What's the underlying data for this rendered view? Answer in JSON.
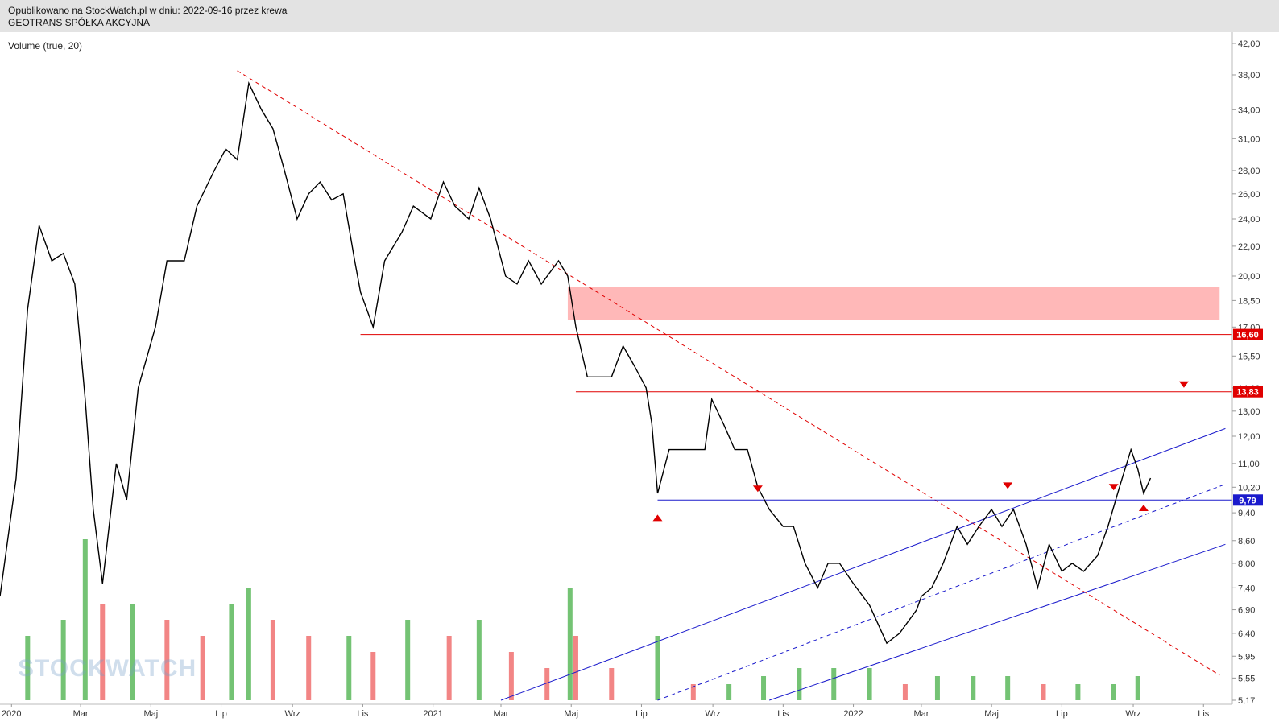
{
  "header": {
    "line1": "Opublikowano na StockWatch.pl w dniu: 2022-09-16 przez krewa",
    "line2": "GEOTRANS SPÓŁKA AKCYJNA"
  },
  "indicator_label": "Volume (true, 20)",
  "watermark": "STOCKWATCH",
  "colors": {
    "price": "#000000",
    "resistance": "#e00000",
    "support_blue": "#1a1acc",
    "zone": "#ffb8b8",
    "vol_up": "#5cb85c",
    "vol_down": "#f07070",
    "header_bg": "#e3e3e3"
  },
  "chart_data": {
    "type": "line",
    "title": "GEOTRANS SPÓŁKA AKCYJNA",
    "y_scale": "log",
    "ylim": [
      5.17,
      42.0
    ],
    "y_ticks": [
      "5,17",
      "5,55",
      "5,95",
      "6,40",
      "6,90",
      "7,40",
      "8,00",
      "8,60",
      "9,40",
      "10,20",
      "11,00",
      "12,00",
      "13,00",
      "14,00",
      "15,50",
      "17,00",
      "18,50",
      "20,00",
      "22,00",
      "24,00",
      "26,00",
      "28,00",
      "31,00",
      "34,00",
      "38,00",
      "42,00"
    ],
    "y_tick_values": [
      5.17,
      5.55,
      5.95,
      6.4,
      6.9,
      7.4,
      8.0,
      8.6,
      9.4,
      10.2,
      11.0,
      12.0,
      13.0,
      14.0,
      15.5,
      17.0,
      18.5,
      20.0,
      22.0,
      24.0,
      26.0,
      28.0,
      31.0,
      34.0,
      38.0,
      42.0
    ],
    "x_ticks": [
      "2020",
      "Mar",
      "Maj",
      "Lip",
      "Wrz",
      "Lis",
      "2021",
      "Mar",
      "Maj",
      "Lip",
      "Wrz",
      "Lis",
      "2022",
      "Mar",
      "Maj",
      "Lip",
      "Wrz",
      "Lis"
    ],
    "x_tick_dates": [
      "2020-01-01",
      "2020-03-01",
      "2020-05-01",
      "2020-07-01",
      "2020-09-01",
      "2020-11-01",
      "2021-01-01",
      "2021-03-01",
      "2021-05-01",
      "2021-07-01",
      "2021-09-01",
      "2021-11-01",
      "2022-01-01",
      "2022-03-01",
      "2022-05-01",
      "2022-07-01",
      "2022-09-01",
      "2022-11-01"
    ],
    "xlim": [
      "2019-12-22",
      "2022-11-26"
    ],
    "price_series": {
      "name": "GEOTRANS",
      "x": [
        "2019-12-22",
        "2020-01-05",
        "2020-01-15",
        "2020-01-25",
        "2020-02-05",
        "2020-02-15",
        "2020-02-25",
        "2020-03-05",
        "2020-03-12",
        "2020-03-20",
        "2020-04-01",
        "2020-04-10",
        "2020-04-20",
        "2020-05-05",
        "2020-05-15",
        "2020-05-30",
        "2020-06-10",
        "2020-06-25",
        "2020-07-05",
        "2020-07-15",
        "2020-07-25",
        "2020-08-05",
        "2020-08-15",
        "2020-08-25",
        "2020-09-05",
        "2020-09-15",
        "2020-09-25",
        "2020-10-05",
        "2020-10-15",
        "2020-10-25",
        "2020-10-30",
        "2020-11-10",
        "2020-11-20",
        "2020-12-05",
        "2020-12-15",
        "2020-12-30",
        "2021-01-10",
        "2021-01-20",
        "2021-02-01",
        "2021-02-10",
        "2021-02-20",
        "2021-03-05",
        "2021-03-15",
        "2021-03-25",
        "2021-04-05",
        "2021-04-20",
        "2021-04-28",
        "2021-05-05",
        "2021-05-15",
        "2021-05-25",
        "2021-06-05",
        "2021-06-15",
        "2021-06-25",
        "2021-07-05",
        "2021-07-10",
        "2021-07-15",
        "2021-07-25",
        "2021-08-10",
        "2021-08-25",
        "2021-08-31",
        "2021-09-10",
        "2021-09-20",
        "2021-10-01",
        "2021-10-10",
        "2021-10-20",
        "2021-11-01",
        "2021-11-10",
        "2021-11-20",
        "2021-12-01",
        "2021-12-10",
        "2021-12-20",
        "2022-01-01",
        "2022-01-15",
        "2022-01-30",
        "2022-02-10",
        "2022-02-25",
        "2022-03-01",
        "2022-03-10",
        "2022-03-20",
        "2022-04-01",
        "2022-04-10",
        "2022-04-20",
        "2022-05-01",
        "2022-05-10",
        "2022-05-20",
        "2022-05-31",
        "2022-06-10",
        "2022-06-20",
        "2022-07-01",
        "2022-07-10",
        "2022-07-20",
        "2022-08-01",
        "2022-08-10",
        "2022-08-20",
        "2022-08-30",
        "2022-09-05",
        "2022-09-10",
        "2022-09-16"
      ],
      "y": [
        7.2,
        10.5,
        18.0,
        23.5,
        21.0,
        21.5,
        19.5,
        13.5,
        9.5,
        7.5,
        11.0,
        9.8,
        14.0,
        17.0,
        21.0,
        21.0,
        25.0,
        28.0,
        30.0,
        29.0,
        37.0,
        34.0,
        32.0,
        28.0,
        24.0,
        26.0,
        27.0,
        25.5,
        26.0,
        21.0,
        19.0,
        17.0,
        21.0,
        23.0,
        25.0,
        24.0,
        27.0,
        25.0,
        24.0,
        26.5,
        24.0,
        20.0,
        19.5,
        21.0,
        19.5,
        21.0,
        20.0,
        17.0,
        14.5,
        14.5,
        14.5,
        16.0,
        15.0,
        14.0,
        12.5,
        10.0,
        11.5,
        11.5,
        11.5,
        13.5,
        12.5,
        11.5,
        11.5,
        10.2,
        9.5,
        9.0,
        9.0,
        8.0,
        7.4,
        8.0,
        8.0,
        7.5,
        7.0,
        6.2,
        6.4,
        6.9,
        7.2,
        7.4,
        8.0,
        9.0,
        8.5,
        9.0,
        9.5,
        9.0,
        9.5,
        8.5,
        7.4,
        8.5,
        7.8,
        8.0,
        7.8,
        8.2,
        9.0,
        10.2,
        11.5,
        10.8,
        10.0,
        10.5
      ]
    },
    "volume_series": {
      "name": "Volume (true, 20)",
      "x": [
        "2020-01-15",
        "2020-02-15",
        "2020-03-05",
        "2020-03-20",
        "2020-04-15",
        "2020-05-15",
        "2020-06-15",
        "2020-07-10",
        "2020-07-25",
        "2020-08-15",
        "2020-09-15",
        "2020-10-20",
        "2020-11-10",
        "2020-12-10",
        "2021-01-15",
        "2021-02-10",
        "2021-03-10",
        "2021-04-10",
        "2021-04-30",
        "2021-05-05",
        "2021-06-05",
        "2021-07-15",
        "2021-08-15",
        "2021-09-15",
        "2021-10-15",
        "2021-11-15",
        "2021-12-15",
        "2022-01-15",
        "2022-02-15",
        "2022-03-15",
        "2022-04-15",
        "2022-05-15",
        "2022-06-15",
        "2022-07-15",
        "2022-08-15",
        "2022-09-05"
      ],
      "values": [
        0.4,
        0.5,
        1.0,
        0.6,
        0.6,
        0.5,
        0.4,
        0.6,
        0.7,
        0.5,
        0.4,
        0.4,
        0.3,
        0.5,
        0.4,
        0.5,
        0.3,
        0.2,
        0.7,
        0.4,
        0.2,
        0.4,
        0.1,
        0.1,
        0.15,
        0.2,
        0.2,
        0.2,
        0.1,
        0.15,
        0.15,
        0.15,
        0.1,
        0.1,
        0.1,
        0.15
      ]
    },
    "horizontal_lines": [
      {
        "name": "16,60",
        "value": 16.6,
        "color": "#e00000",
        "from": "2020-10-30"
      },
      {
        "name": "13,83",
        "value": 13.83,
        "color": "#e00000",
        "from": "2021-05-05"
      },
      {
        "name": "9,79",
        "value": 9.79,
        "color": "#1a1acc",
        "from": "2021-07-15"
      }
    ],
    "zone": {
      "from": "2021-04-28",
      "to": "2022-11-15",
      "low": 17.4,
      "high": 19.3
    },
    "trend_lines": [
      {
        "style": "dashed",
        "color": "#e00000",
        "from": [
          "2020-07-15",
          38.5
        ],
        "to": [
          "2022-11-15",
          5.6
        ]
      },
      {
        "style": "solid",
        "color": "#1a1acc",
        "from": [
          "2021-03-01",
          5.17
        ],
        "to": [
          "2022-11-20",
          12.3
        ]
      },
      {
        "style": "dashed",
        "color": "#1a1acc",
        "from": [
          "2021-07-15",
          5.17
        ],
        "to": [
          "2022-11-20",
          10.3
        ]
      },
      {
        "style": "solid",
        "color": "#1a1acc",
        "from": [
          "2021-10-20",
          5.17
        ],
        "to": [
          "2022-11-20",
          8.5
        ]
      }
    ],
    "markers": [
      {
        "type": "up",
        "date": "2021-07-15",
        "value": 9.25
      },
      {
        "type": "down",
        "date": "2021-10-10",
        "value": 10.15
      },
      {
        "type": "down",
        "date": "2022-05-15",
        "value": 10.25
      },
      {
        "type": "down",
        "date": "2022-08-15",
        "value": 10.2
      },
      {
        "type": "up",
        "date": "2022-09-10",
        "value": 9.55
      },
      {
        "type": "down",
        "date": "2022-10-15",
        "value": 14.15
      }
    ],
    "grid": false,
    "legend": "none"
  }
}
